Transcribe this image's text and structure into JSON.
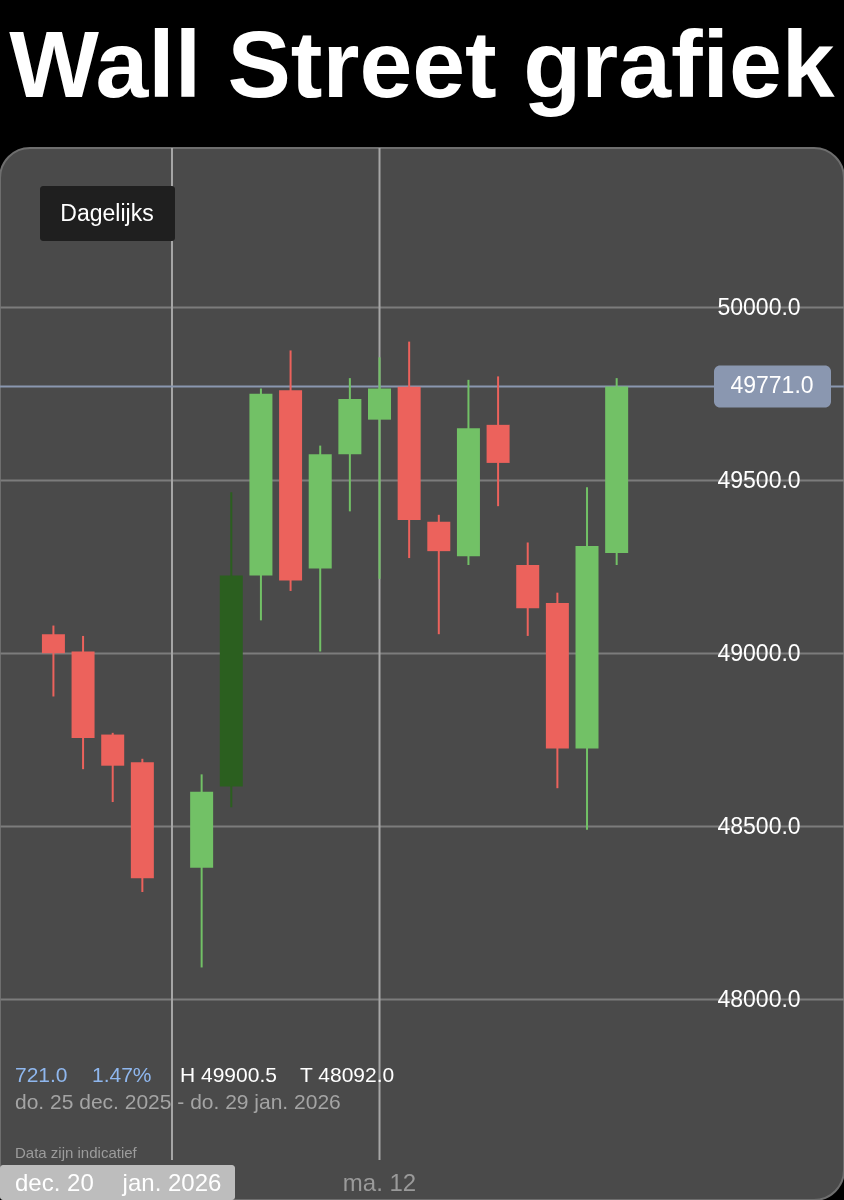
{
  "chart_data": {
    "type": "candlestick",
    "title": "Wall Street grafiek",
    "categories": [
      null,
      null,
      null,
      null,
      "jan. 2026",
      null,
      null,
      null,
      null,
      null,
      null,
      "ma. 12",
      null,
      null,
      null,
      null,
      null,
      null,
      null,
      null
    ],
    "ohlc": [
      [
        49055,
        49080,
        48875,
        49000
      ],
      [
        49005,
        49050,
        48665,
        48755
      ],
      [
        48765,
        48770,
        48570,
        48675
      ],
      [
        48685,
        48695,
        48310,
        48350
      ],
      null,
      [
        48380,
        48650,
        48092,
        48600
      ],
      [
        48615,
        49465,
        48555,
        49225
      ],
      [
        49225,
        49765,
        49095,
        49750
      ],
      [
        49760,
        49875,
        49180,
        49210
      ],
      [
        49245,
        49600,
        49005,
        49575
      ],
      [
        49575,
        49795,
        49410,
        49735
      ],
      [
        49675,
        49855,
        49215,
        49765
      ],
      [
        49770,
        49900.5,
        49275,
        49385
      ],
      [
        49380,
        49400,
        49055,
        49295
      ],
      [
        49280,
        49790,
        49255,
        49650
      ],
      [
        49660,
        49800,
        49425,
        49550
      ],
      [
        49255,
        49320,
        49050,
        49130
      ],
      [
        49145,
        49175,
        48610,
        48725
      ],
      [
        48725,
        49480,
        48490,
        49310
      ],
      [
        49290,
        49795,
        49255,
        49771
      ]
    ],
    "colors": [
      "#ec625c",
      "#ec625c",
      "#ec625c",
      "#ec625c",
      null,
      "#72c166",
      "#2b5f1f",
      "#72c166",
      "#ec625c",
      "#72c166",
      "#72c166",
      "#72c166",
      "#ec625c",
      "#ec625c",
      "#72c166",
      "#ec625c",
      "#ec625c",
      "#ec625c",
      "#72c166",
      "#72c166"
    ],
    "ylim": [
      47420,
      50460
    ],
    "yticks": [
      {
        "value": 48000,
        "label": "48000.0"
      },
      {
        "value": 48500,
        "label": "48500.0"
      },
      {
        "value": 49000,
        "label": "49000.0"
      },
      {
        "value": 49500,
        "label": "49500.0"
      },
      {
        "value": 50000,
        "label": "50000.0"
      }
    ],
    "grid": true,
    "ref_lines": [
      {
        "axis": "y",
        "value": 49771,
        "label": "49771.0",
        "color": "#8a97b0"
      }
    ],
    "annotations": [
      "Dagelijks",
      "721.0",
      "1.47%",
      "H 49900.5",
      "T 48092.0",
      "do. 25 dec. 2025 - do. 29 jan. 2026",
      "Data zijn indicatief",
      "dec. 20"
    ]
  }
}
